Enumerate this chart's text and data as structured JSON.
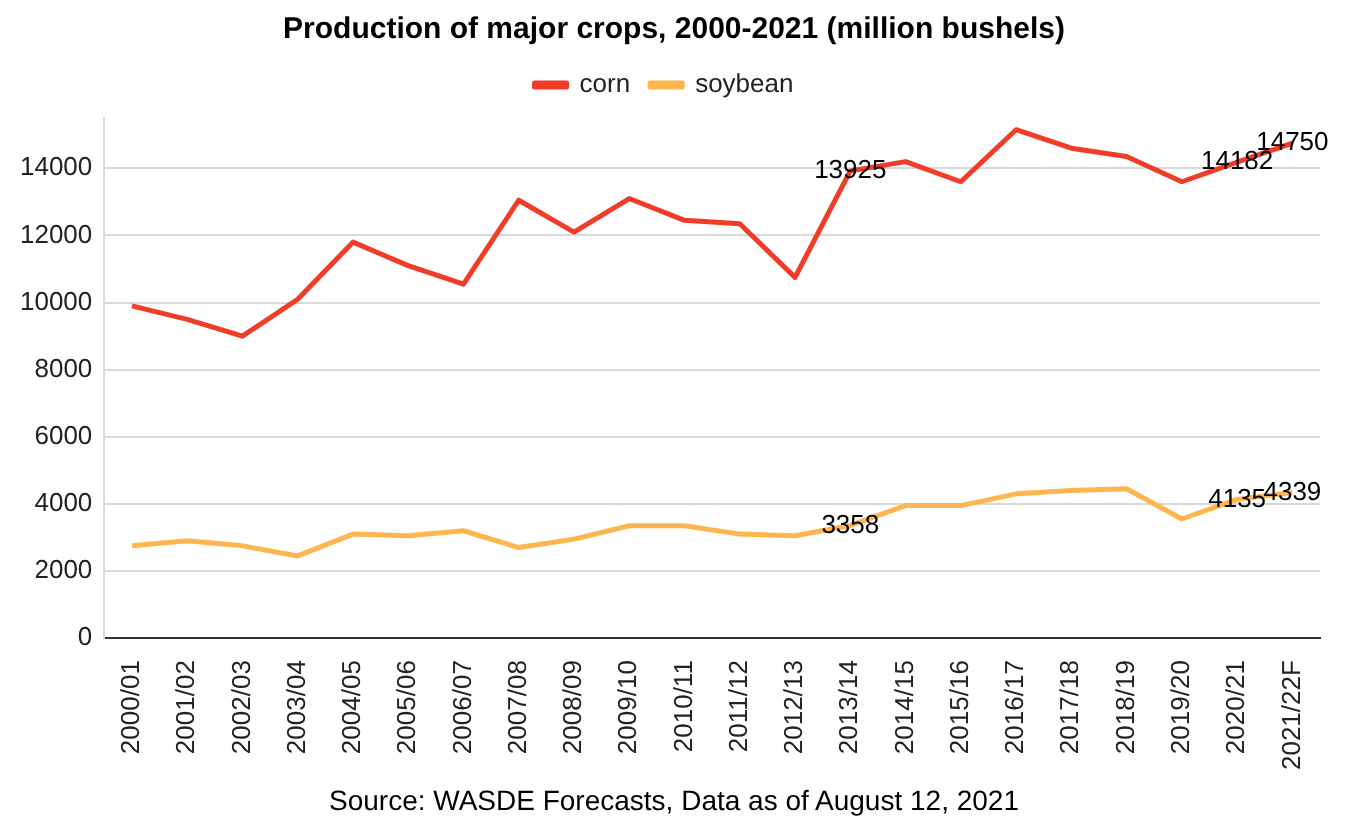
{
  "chart_data": {
    "type": "line",
    "title": "Production of major crops, 2000-2021 (million bushels)",
    "categories": [
      "2000/01",
      "2001/02",
      "2002/03",
      "2003/04",
      "2004/05",
      "2005/06",
      "2006/07",
      "2007/08",
      "2008/09",
      "2009/10",
      "2010/11",
      "2011/12",
      "2012/13",
      "2013/14",
      "2014/15",
      "2015/16",
      "2016/17",
      "2017/18",
      "2018/19",
      "2019/20",
      "2020/21",
      "2021/22F"
    ],
    "series": [
      {
        "name": "corn",
        "color": "#f03c28",
        "values": [
          9900,
          9500,
          9000,
          10100,
          11800,
          11100,
          10550,
          13050,
          12100,
          13100,
          12450,
          12350,
          10750,
          13925,
          14200,
          13600,
          15150,
          14600,
          14350,
          13600,
          14182,
          14750
        ],
        "value_labels": [
          null,
          null,
          null,
          null,
          null,
          null,
          null,
          null,
          null,
          null,
          null,
          null,
          null,
          "13925",
          null,
          null,
          null,
          null,
          null,
          null,
          "14182",
          "14750"
        ]
      },
      {
        "name": "soybean",
        "color": "#fdb54e",
        "values": [
          2750,
          2900,
          2750,
          2450,
          3100,
          3050,
          3200,
          2700,
          2950,
          3350,
          3350,
          3100,
          3050,
          3358,
          3950,
          3950,
          4300,
          4400,
          4450,
          3550,
          4135,
          4339
        ],
        "value_labels": [
          null,
          null,
          null,
          null,
          null,
          null,
          null,
          null,
          null,
          null,
          null,
          null,
          null,
          "3358",
          null,
          null,
          null,
          null,
          null,
          null,
          "4135",
          "4339"
        ]
      }
    ],
    "yticks": [
      0,
      2000,
      4000,
      6000,
      8000,
      10000,
      12000,
      14000
    ],
    "ylim": [
      0,
      15500
    ],
    "grid": "y",
    "legend": "top",
    "marker": "none",
    "annotations": [
      "Source: WASDE Forecasts, Data as of August 12, 2021"
    ]
  }
}
